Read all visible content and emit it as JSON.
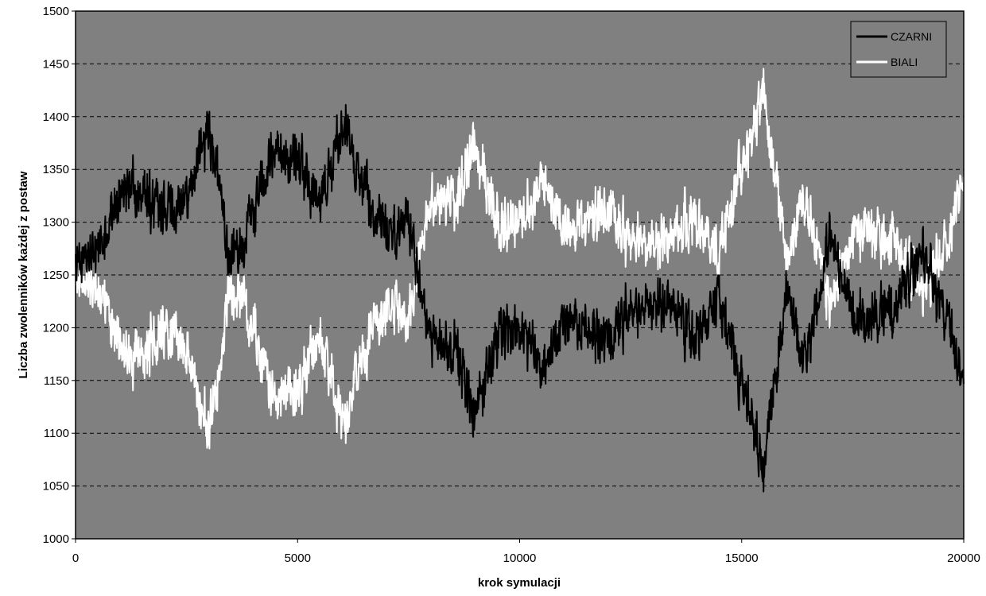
{
  "chart_data": {
    "type": "line",
    "title": "",
    "xlabel": "krok symulacji",
    "ylabel": "Liczba zwolenników każdej z postaw",
    "xlim": [
      0,
      20000
    ],
    "ylim": [
      1000,
      1500
    ],
    "x_ticks": [
      0,
      5000,
      10000,
      15000,
      20000
    ],
    "x_tick_labels": [
      "0",
      "5000",
      "10000",
      "15000",
      "20000"
    ],
    "y_ticks": [
      1000,
      1050,
      1100,
      1150,
      1200,
      1250,
      1300,
      1350,
      1400,
      1450,
      1500
    ],
    "y_tick_labels": [
      "1000",
      "1050",
      "1100",
      "1150",
      "1200",
      "1250",
      "1300",
      "1350",
      "1400",
      "1450",
      "1500"
    ],
    "grid": "horizontal dashed",
    "legend_position": "top-right",
    "colors": {
      "plot_background": "#808080",
      "CZARNI": "#000000",
      "BIALI": "#ffffff",
      "gridline": "#000000"
    },
    "x": [
      0,
      500,
      1000,
      1500,
      2000,
      2500,
      3000,
      3500,
      4000,
      4500,
      5000,
      5500,
      6000,
      6500,
      7000,
      7500,
      8000,
      8500,
      9000,
      9500,
      10000,
      10500,
      11000,
      11500,
      12000,
      12500,
      13000,
      13500,
      14000,
      14500,
      15000,
      15500,
      16000,
      16500,
      17000,
      17500,
      18000,
      18500,
      19000,
      19500,
      20000
    ],
    "series": [
      {
        "name": "CZARNI",
        "values": [
          1260,
          1270,
          1330,
          1330,
          1310,
          1320,
          1390,
          1260,
          1310,
          1370,
          1360,
          1320,
          1390,
          1330,
          1290,
          1300,
          1190,
          1180,
          1120,
          1190,
          1200,
          1160,
          1210,
          1200,
          1190,
          1210,
          1220,
          1220,
          1190,
          1220,
          1150,
          1070,
          1230,
          1170,
          1290,
          1210,
          1210,
          1220,
          1270,
          1230,
          1150
        ]
      },
      {
        "name": "BIALI",
        "values": [
          1250,
          1240,
          1180,
          1170,
          1200,
          1180,
          1100,
          1240,
          1200,
          1130,
          1140,
          1190,
          1110,
          1180,
          1220,
          1210,
          1320,
          1320,
          1370,
          1300,
          1300,
          1340,
          1290,
          1300,
          1310,
          1290,
          1280,
          1290,
          1300,
          1280,
          1350,
          1420,
          1270,
          1320,
          1220,
          1290,
          1290,
          1280,
          1240,
          1260,
          1340
        ]
      }
    ]
  }
}
